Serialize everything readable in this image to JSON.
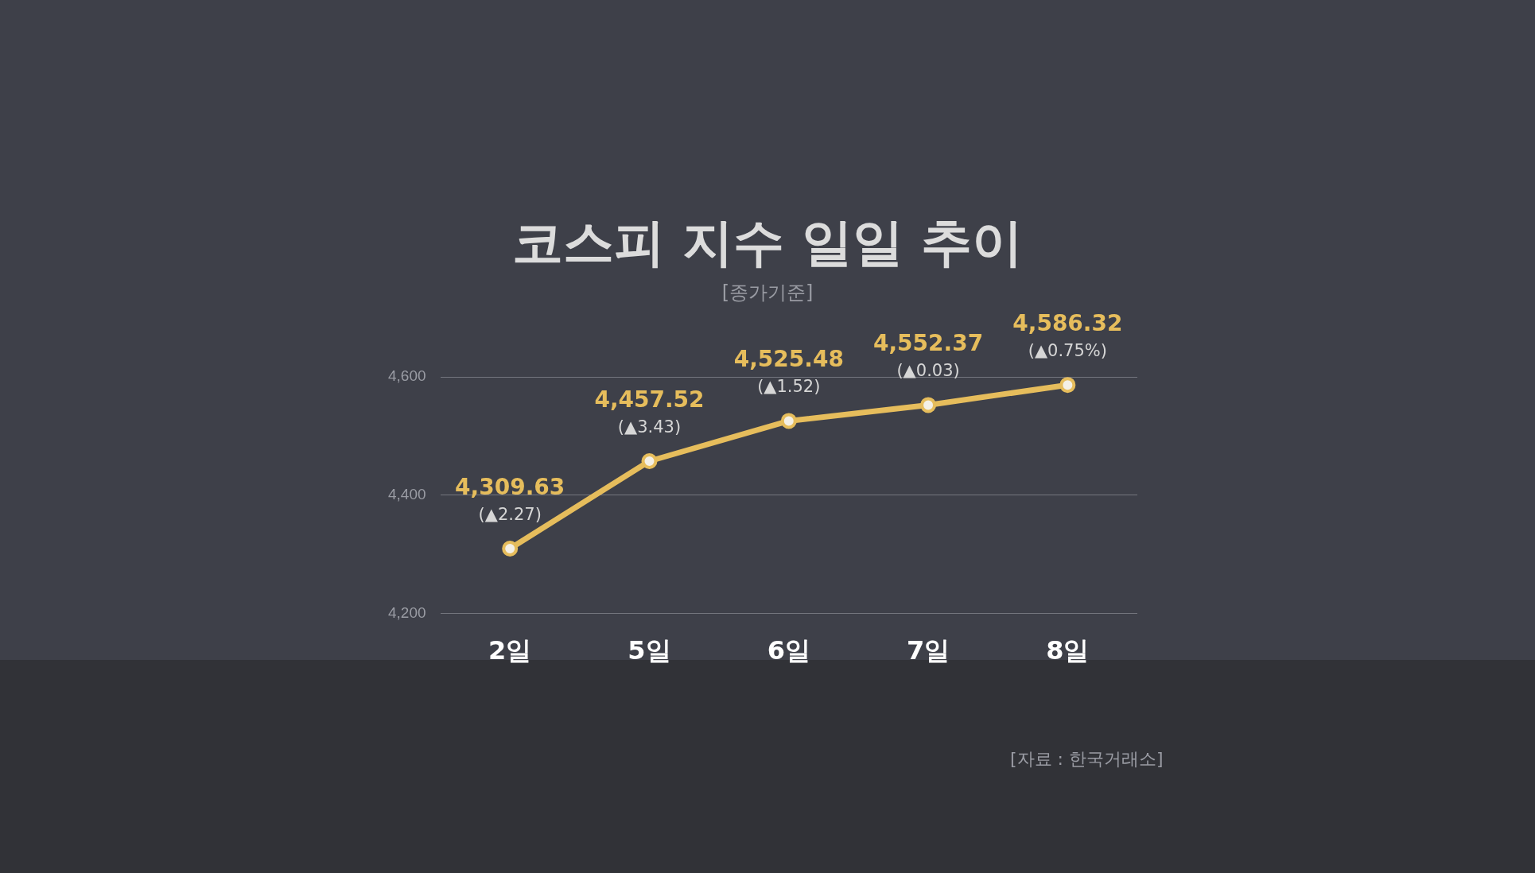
{
  "chart_data": {
    "type": "line",
    "title": "코스피 지수 일일 추이",
    "subtitle": "[종가기준]",
    "categories": [
      "2일",
      "5일",
      "6일",
      "7일",
      "8일"
    ],
    "values": [
      4309.63,
      4457.52,
      4525.48,
      4552.37,
      4586.32
    ],
    "value_labels": [
      "4,309.63",
      "4,457.52",
      "4,525.48",
      "4,552.37",
      "4,586.32"
    ],
    "color": "#e6bd5c",
    "marker": "circle",
    "line_style": "solid",
    "ylim": [
      4200,
      4600
    ],
    "yticks": [
      {
        "value": 4200,
        "label": "4,200"
      },
      {
        "value": 4400,
        "label": "4,400"
      },
      {
        "value": 4600,
        "label": "4,600"
      }
    ],
    "grid": "y",
    "legend": false,
    "annotations": [
      {
        "text": "(▲2.27)",
        "x": "2일",
        "y": 4309.63
      },
      {
        "text": "(▲3.43)",
        "x": "5일",
        "y": 4457.52
      },
      {
        "text": "(▲1.52)",
        "x": "6일",
        "y": 4525.48
      },
      {
        "text": "(▲0.03)",
        "x": "7일",
        "y": 4552.37
      },
      {
        "text": "(▲0.75%)",
        "x": "8일",
        "y": 4586.32
      },
      "[자료 : 한국거래소]"
    ]
  }
}
